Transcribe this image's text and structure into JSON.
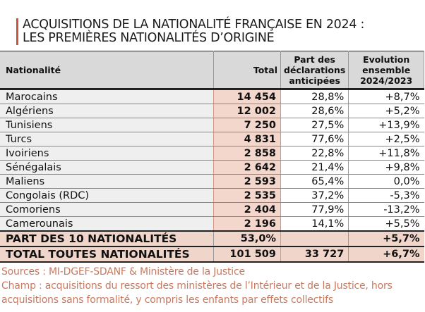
{
  "title": {
    "line1": "ACQUISITIONS DE LA NATIONALITÉ FRANÇAISE EN 2024 :",
    "line2": "LES PREMIÈRES NATIONALITÉS D’ORIGINE"
  },
  "headers": {
    "nationalite": "Nationalité",
    "total": "Total",
    "part": "Part des déclarations anticipées",
    "evolution": "Evolution ensemble 2024/2023"
  },
  "rows": [
    {
      "name": "Marocains",
      "total": "14 454",
      "part": "28,8%",
      "evo": "+8,7%"
    },
    {
      "name": "Algériens",
      "total": "12 002",
      "part": "28,6%",
      "evo": "+5,2%"
    },
    {
      "name": "Tunisiens",
      "total": "7 250",
      "part": "27,5%",
      "evo": "+13,9%"
    },
    {
      "name": "Turcs",
      "total": "4 831",
      "part": "77,6%",
      "evo": "+2,5%"
    },
    {
      "name": "Ivoiriens",
      "total": "2 858",
      "part": "22,8%",
      "evo": "+11,8%"
    },
    {
      "name": "Sénégalais",
      "total": "2 642",
      "part": "21,4%",
      "evo": "+9,8%"
    },
    {
      "name": "Maliens",
      "total": "2 593",
      "part": "65,4%",
      "evo": "0,0%"
    },
    {
      "name": "Congolais (RDC)",
      "total": "2 535",
      "part": "37,2%",
      "evo": "-5,3%"
    },
    {
      "name": "Comoriens",
      "total": "2 404",
      "part": "77,9%",
      "evo": "-13,2%"
    },
    {
      "name": "Camerounais",
      "total": "2 196",
      "part": "14,1%",
      "evo": "+5,5%"
    }
  ],
  "part10": {
    "name": "PART DES 10 NATIONALITÉS",
    "total": "53,0%",
    "part": "",
    "evo": "+5,7%"
  },
  "totalAll": {
    "name": "TOTAL TOUTES NATIONALITÉS",
    "total": "101 509",
    "part": "33 727",
    "evo": "+6,7%"
  },
  "notes": {
    "sources": "Sources : MI-DGEF-SDANF & Ministère de la Justice",
    "champ": "Champ : acquisitions du ressort des ministères de l’Intérieur et de la Justice, hors acquisitions sans formalité, y compris les enfants par effets collectifs"
  },
  "colors": {
    "accent": "#c8553d",
    "total_column": "#f3d6cc",
    "header": "#d9d9d9",
    "notes": "#c87a60"
  }
}
